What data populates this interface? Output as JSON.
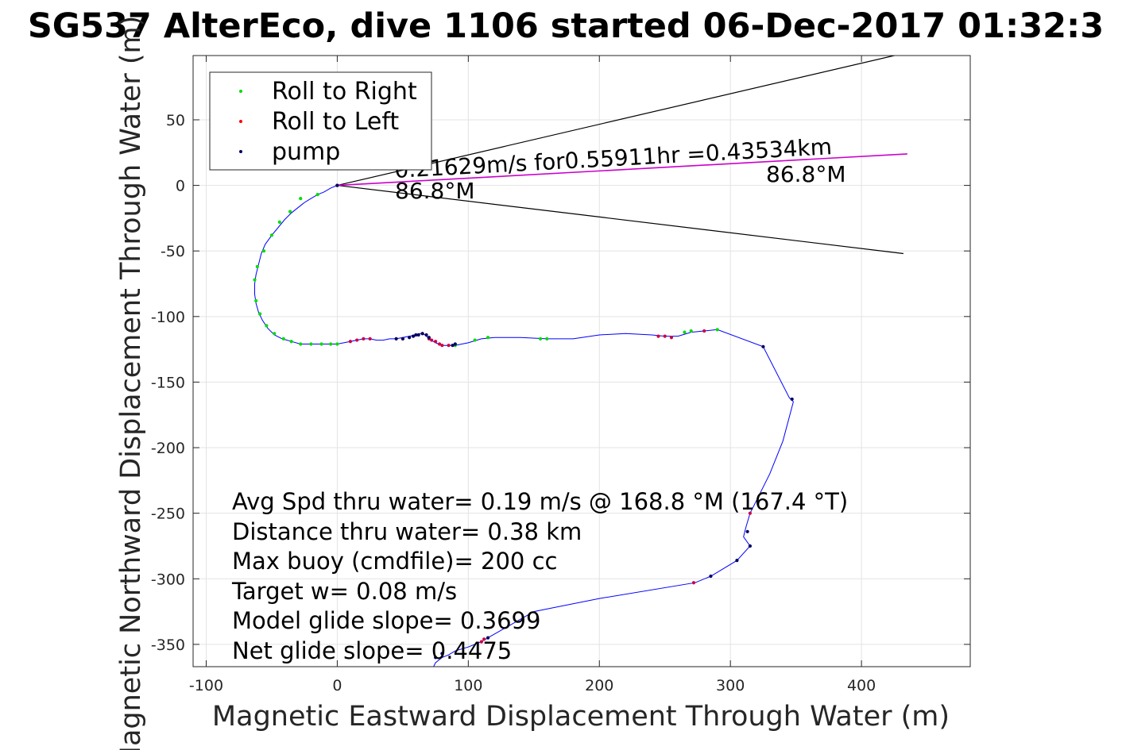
{
  "title": "SG537 AlterEco, dive 1106 started 06-Dec-2017 01:32:3",
  "colors": {
    "track": "#0000ff",
    "roll_right": "#00dd00",
    "roll_left": "#ff0000",
    "pump": "#000060",
    "current_vector": "#cc00cc",
    "cone": "#000000",
    "grid": "#e3e3e3"
  },
  "chart_data": {
    "type": "line",
    "title": "SG537 AlterEco, dive 1106 started 06-Dec-2017 01:32:3",
    "xlabel": "Magnetic Eastward Displacement Through Water (m)",
    "ylabel": "Magnetic Northward Displacement Through Water (m)",
    "xlim": [
      -110,
      483
    ],
    "ylim": [
      -367,
      99
    ],
    "xticks": [
      -100,
      0,
      100,
      200,
      300,
      400
    ],
    "yticks": [
      50,
      0,
      -50,
      -100,
      -150,
      -200,
      -250,
      -300,
      -350
    ],
    "xtick_labels": [
      "-100",
      "0",
      "100",
      "200",
      "300",
      "400"
    ],
    "ytick_labels": [
      "50",
      "0",
      "-50",
      "-100",
      "-150",
      "-200",
      "-250",
      "-300",
      "-350"
    ],
    "grid": true,
    "legend_position": "top-left",
    "legend": [
      "Roll to Right",
      "Roll to Left",
      "pump"
    ],
    "track": {
      "x": [
        0,
        -5,
        -10,
        -15,
        -20,
        -25,
        -30,
        -35,
        -40,
        -45,
        -50,
        -55,
        -58,
        -60,
        -62,
        -63,
        -63,
        -62,
        -60,
        -57,
        -53,
        -48,
        -42,
        -35,
        -28,
        -20,
        -12,
        -5,
        0,
        5,
        10,
        15,
        20,
        25,
        30,
        35,
        40,
        45,
        50,
        55,
        60,
        63,
        65,
        67,
        70,
        75,
        80,
        85,
        90,
        95,
        100,
        110,
        120,
        140,
        160,
        180,
        200,
        220,
        240,
        250,
        260,
        270,
        280,
        290,
        325,
        345,
        348,
        340,
        330,
        320,
        315,
        312,
        311,
        310,
        315,
        305,
        285,
        273,
        200,
        150,
        115,
        110,
        100,
        90,
        85,
        80,
        75,
        73
      ],
      "y": [
        0,
        -2,
        -5,
        -7,
        -10,
        -13,
        -17,
        -21,
        -26,
        -32,
        -38,
        -45,
        -52,
        -60,
        -68,
        -75,
        -83,
        -90,
        -97,
        -103,
        -109,
        -114,
        -117,
        -119,
        -121,
        -121,
        -121,
        -121,
        -121,
        -120,
        -119,
        -118,
        -117,
        -117,
        -118,
        -118,
        -117,
        -117,
        -116,
        -115,
        -114,
        -113,
        -113,
        -114,
        -117,
        -120,
        -122,
        -122,
        -122,
        -121,
        -120,
        -117,
        -116,
        -116,
        -117,
        -117,
        -114,
        -113,
        -114,
        -115,
        -115,
        -112,
        -111,
        -110,
        -123,
        -162,
        -165,
        -195,
        -220,
        -240,
        -250,
        -260,
        -264,
        -268,
        -275,
        -286,
        -298,
        -303,
        -315,
        -325,
        -345,
        -348,
        -352,
        -355,
        -358,
        -360,
        -364,
        -368
      ]
    },
    "roll_right": {
      "x": [
        -15,
        -28,
        -36,
        -44,
        -50,
        -56,
        -61,
        -63,
        -62,
        -59,
        -54,
        -48,
        -41,
        -35,
        -28,
        -20,
        -12,
        -5,
        0,
        90,
        105,
        115,
        155,
        160,
        265,
        270,
        290
      ],
      "y": [
        -7,
        -10,
        -20,
        -28,
        -38,
        -50,
        -62,
        -72,
        -88,
        -98,
        -107,
        -113,
        -117,
        -119,
        -121,
        -121,
        -121,
        -121,
        -121,
        -122,
        -118,
        -116,
        -117,
        -117,
        -112,
        -111,
        -110
      ]
    },
    "roll_left": {
      "x": [
        0,
        10,
        15,
        20,
        25,
        50,
        65,
        70,
        72,
        75,
        78,
        80,
        85,
        245,
        250,
        255,
        280,
        315,
        272,
        110,
        112
      ],
      "y": [
        0,
        -119,
        -118,
        -117,
        -117,
        -117,
        -113,
        -117,
        -118,
        -119,
        -121,
        -122,
        -122,
        -115,
        -115,
        -116,
        -111,
        -250,
        -303,
        -348,
        -346
      ],
      "marker_color": "#cc0044"
    },
    "pump": {
      "x": [
        0,
        45,
        50,
        55,
        58,
        60,
        62,
        65,
        68,
        70,
        88,
        90,
        325,
        347,
        313,
        315,
        305,
        285,
        115,
        80,
        75
      ],
      "y": [
        0,
        -117,
        -117,
        -116,
        -115,
        -114,
        -114,
        -113,
        -114,
        -116,
        -122,
        -121,
        -123,
        -163,
        -264,
        -275,
        -286,
        -298,
        -345,
        -357,
        -360
      ]
    },
    "current_vector": {
      "from": [
        0,
        0
      ],
      "to": [
        435,
        24
      ],
      "label": "0.21629m/s for0.55911hr =0.43534km",
      "heading_label_start": "86.8°M",
      "heading_label_end": "86.8°M"
    },
    "cone": {
      "upper": {
        "from": [
          0,
          0
        ],
        "to": [
          425,
          99
        ]
      },
      "lower": {
        "from": [
          0,
          0
        ],
        "to": [
          432,
          -52
        ]
      }
    },
    "stats": [
      "Avg Spd thru water=  0.19 m/s @ 168.8 °M (167.4 °T)",
      "Distance thru water=  0.38 km",
      "Max buoy (cmdfile)= 200 cc",
      "Target w= 0.08 m/s",
      "Model glide slope= 0.3699",
      "Net glide slope= 0.4475"
    ]
  }
}
